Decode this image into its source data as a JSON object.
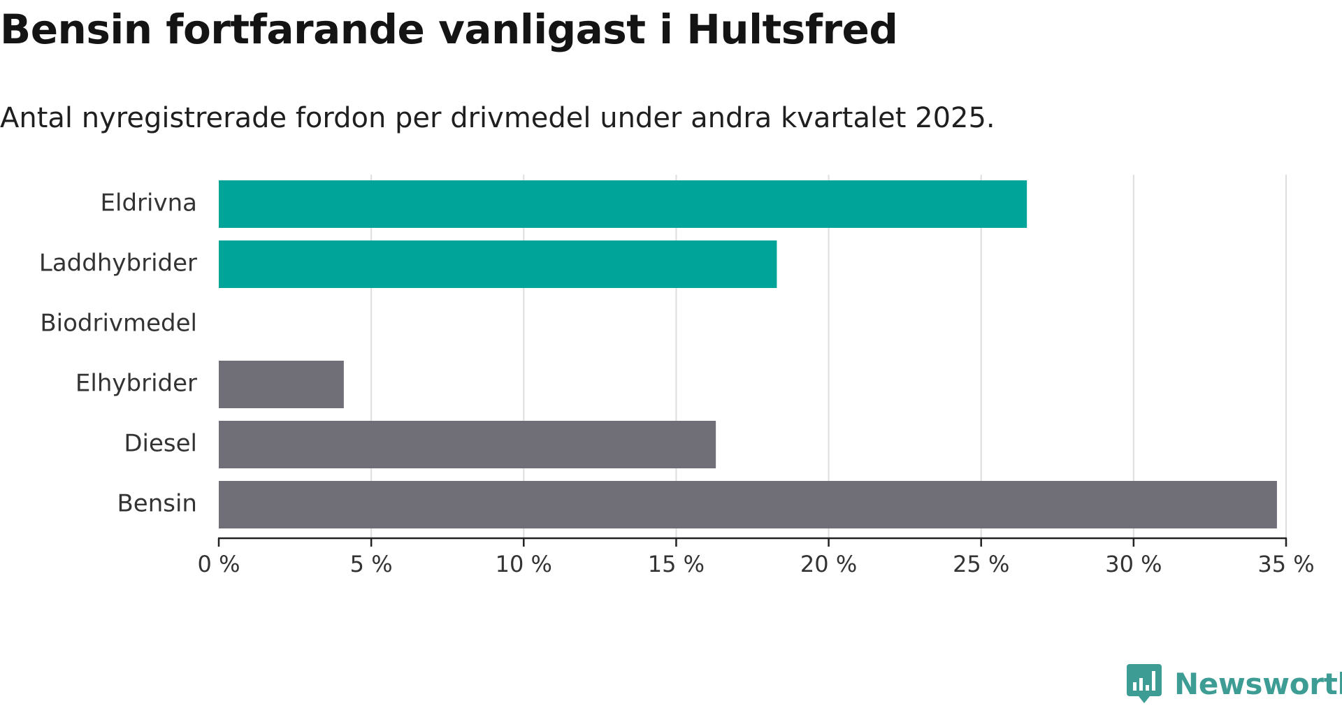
{
  "header": {
    "title": "Bensin fortfarande vanligast i Hultsfred",
    "subtitle": "Antal nyregistrerade fordon per drivmedel under andra kvartalet 2025."
  },
  "brand": {
    "name": "Newsworthy",
    "color": "#3d9c94",
    "icon": "newsworthy-logo-icon"
  },
  "chart_data": {
    "type": "bar",
    "orientation": "horizontal",
    "title": "",
    "xlabel": "",
    "ylabel": "",
    "xlim": [
      0,
      35
    ],
    "ticks": [
      0,
      5,
      10,
      15,
      20,
      25,
      30,
      35
    ],
    "tick_labels": [
      "0 %",
      "5 %",
      "10 %",
      "15 %",
      "20 %",
      "25 %",
      "30 %",
      "35 %"
    ],
    "grid": "vertical",
    "categories": [
      "Eldrivna",
      "Laddhybrider",
      "Biodrivmedel",
      "Elhybrider",
      "Diesel",
      "Bensin"
    ],
    "values": [
      26.5,
      18.3,
      0,
      4.1,
      16.3,
      34.7
    ],
    "colors": [
      "#00a499",
      "#00a499",
      "#00a499",
      "#706f78",
      "#706f78",
      "#706f78"
    ],
    "grid_color": "#dddddd",
    "axis_color": "#222222"
  }
}
